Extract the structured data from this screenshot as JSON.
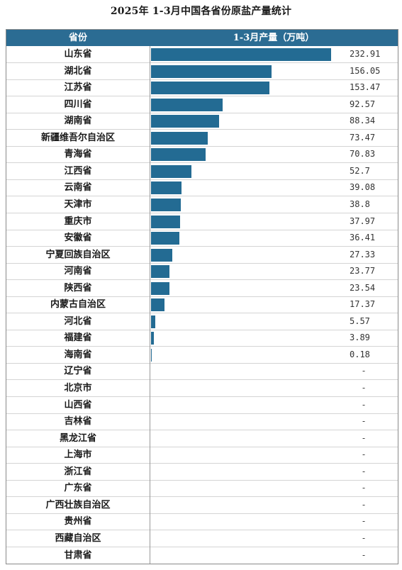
{
  "title": "2025年 1-3月中国各省份原盐产量统计",
  "header": {
    "province": "省份",
    "value": "1-3月产量（万吨）"
  },
  "colors": {
    "header_bg": "#2b6c93",
    "bar": "#236b93"
  },
  "chart_data": {
    "type": "bar",
    "orientation": "horizontal",
    "title": "2025年 1-3月中国各省份原盐产量统计",
    "xlabel": "1-3月产量（万吨）",
    "ylabel": "省份",
    "xlim": [
      0,
      240
    ],
    "categories": [
      "山东省",
      "湖北省",
      "江苏省",
      "四川省",
      "湖南省",
      "新疆维吾尔自治区",
      "青海省",
      "江西省",
      "云南省",
      "天津市",
      "重庆市",
      "安徽省",
      "宁夏回族自治区",
      "河南省",
      "陕西省",
      "内蒙古自治区",
      "河北省",
      "福建省",
      "海南省",
      "辽宁省",
      "北京市",
      "山西省",
      "吉林省",
      "黑龙江省",
      "上海市",
      "浙江省",
      "广东省",
      "广西壮族自治区",
      "贵州省",
      "西藏自治区",
      "甘肃省"
    ],
    "values": [
      232.91,
      156.05,
      153.47,
      92.57,
      88.34,
      73.47,
      70.83,
      52.7,
      39.08,
      38.8,
      37.97,
      36.41,
      27.33,
      23.77,
      23.54,
      17.37,
      5.57,
      3.89,
      0.18,
      null,
      null,
      null,
      null,
      null,
      null,
      null,
      null,
      null,
      null,
      null,
      null
    ],
    "value_labels": [
      "232.91",
      "156.05",
      "153.47",
      "92.57",
      "88.34",
      "73.47",
      "70.83",
      "52.7",
      "39.08",
      "38.8",
      "37.97",
      "36.41",
      "27.33",
      "23.77",
      "23.54",
      "17.37",
      "5.57",
      "3.89",
      "0.18",
      "-",
      "-",
      "-",
      "-",
      "-",
      "-",
      "-",
      "-",
      "-",
      "-",
      "-",
      "-"
    ],
    "grid": false,
    "legend": "none"
  }
}
